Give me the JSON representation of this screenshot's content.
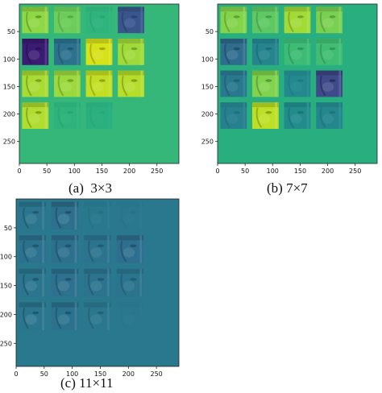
{
  "chart_data": [
    {
      "type": "heatmap",
      "caption": "(a)  3×3",
      "xlim": [
        0,
        290
      ],
      "ylim": [
        290,
        0
      ],
      "xticks": [
        0,
        50,
        100,
        150,
        200,
        250
      ],
      "yticks": [
        50,
        100,
        150,
        200,
        250
      ],
      "grid": {
        "rows": 4,
        "cols": 4,
        "cell_span": 58,
        "inner_margin": 5
      },
      "background_color": "#35b779",
      "cells": [
        [
          {
            "color": "#8fd744",
            "texture": 0.55
          },
          {
            "color": "#6ccd5a",
            "texture": 0.35
          },
          {
            "color": "#2fb47c",
            "texture": 0.15
          },
          {
            "color": "#39568c",
            "texture": 0.45
          }
        ],
        [
          {
            "color": "#3b1c74",
            "texture": 0.6
          },
          {
            "color": "#2c728e",
            "texture": 0.45
          },
          {
            "color": "#d8e219",
            "texture": 0.5
          },
          {
            "color": "#a0da39",
            "texture": 0.5
          }
        ],
        [
          {
            "color": "#a8db34",
            "texture": 0.55
          },
          {
            "color": "#9bd93c",
            "texture": 0.5
          },
          {
            "color": "#c2df23",
            "texture": 0.5
          },
          {
            "color": "#b5de2b",
            "texture": 0.55
          }
        ],
        [
          {
            "color": "#b0dd2f",
            "texture": 0.55
          },
          {
            "color": "#2eb37c",
            "texture": 0.15
          },
          {
            "color": "#2ab07f",
            "texture": 0.1
          },
          {
            "color": "#35b779",
            "texture": 0.0
          }
        ]
      ]
    },
    {
      "type": "heatmap",
      "caption": "(b) 7×7",
      "xlim": [
        0,
        290
      ],
      "ylim": [
        290,
        0
      ],
      "xticks": [
        0,
        50,
        100,
        150,
        200,
        250
      ],
      "yticks": [
        50,
        100,
        150,
        200,
        250
      ],
      "grid": {
        "rows": 4,
        "cols": 4,
        "cell_span": 58,
        "inner_margin": 5
      },
      "background_color": "#29af7f",
      "cells": [
        [
          {
            "color": "#84d44b",
            "texture": 0.5
          },
          {
            "color": "#5ec962",
            "texture": 0.45
          },
          {
            "color": "#a2da37",
            "texture": 0.5
          },
          {
            "color": "#7ad151",
            "texture": 0.5
          }
        ],
        [
          {
            "color": "#2f6c8e",
            "texture": 0.55
          },
          {
            "color": "#25848e",
            "texture": 0.35
          },
          {
            "color": "#3dbc74",
            "texture": 0.4
          },
          {
            "color": "#40bd72",
            "texture": 0.4
          }
        ],
        [
          {
            "color": "#2a788e",
            "texture": 0.4
          },
          {
            "color": "#7fd34e",
            "texture": 0.55
          },
          {
            "color": "#23898e",
            "texture": 0.2
          },
          {
            "color": "#3e4a89",
            "texture": 0.65
          }
        ],
        [
          {
            "color": "#27808e",
            "texture": 0.25
          },
          {
            "color": "#bddf26",
            "texture": 0.55
          },
          {
            "color": "#228c8d",
            "texture": 0.35
          },
          {
            "color": "#24878e",
            "texture": 0.3
          }
        ]
      ]
    },
    {
      "type": "heatmap",
      "caption": "(c) 11×11",
      "xlim": [
        0,
        290
      ],
      "ylim": [
        290,
        0
      ],
      "xticks": [
        0,
        50,
        100,
        150,
        200,
        250
      ],
      "yticks": [
        50,
        100,
        150,
        200,
        250
      ],
      "grid": {
        "rows": 4,
        "cols": 4,
        "cell_span": 58,
        "inner_margin": 5
      },
      "background_color": "#2a788e",
      "cells": [
        [
          {
            "color": "#2b758e",
            "texture": 0.45
          },
          {
            "color": "#2d708e",
            "texture": 0.55
          },
          {
            "color": "#29798e",
            "texture": 0.15
          },
          {
            "color": "#2a788e",
            "texture": 0.1
          }
        ],
        [
          {
            "color": "#2c728e",
            "texture": 0.5
          },
          {
            "color": "#2d708e",
            "texture": 0.5
          },
          {
            "color": "#2c738e",
            "texture": 0.4
          },
          {
            "color": "#2e6e8e",
            "texture": 0.5
          }
        ],
        [
          {
            "color": "#2b758e",
            "texture": 0.5
          },
          {
            "color": "#2d718e",
            "texture": 0.5
          },
          {
            "color": "#2c738e",
            "texture": 0.45
          },
          {
            "color": "#2b748e",
            "texture": 0.4
          }
        ],
        [
          {
            "color": "#2b768e",
            "texture": 0.5
          },
          {
            "color": "#2c728e",
            "texture": 0.5
          },
          {
            "color": "#2a778e",
            "texture": 0.35
          },
          {
            "color": "#2a788e",
            "texture": 0.05
          }
        ]
      ]
    }
  ]
}
